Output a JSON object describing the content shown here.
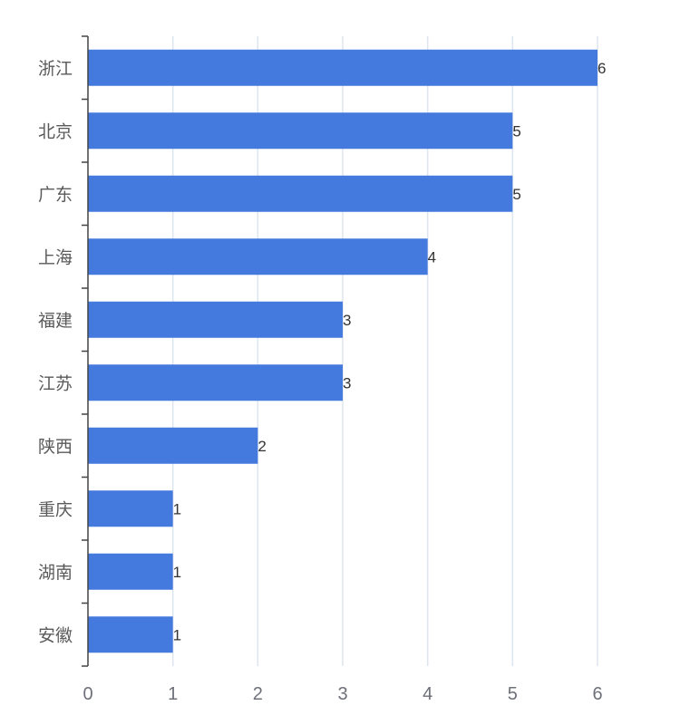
{
  "chart_data": {
    "type": "bar",
    "orientation": "horizontal",
    "categories": [
      "浙江",
      "北京",
      "广东",
      "上海",
      "福建",
      "江苏",
      "陕西",
      "重庆",
      "湖南",
      "安徽"
    ],
    "values": [
      6,
      5,
      5,
      4,
      3,
      3,
      2,
      1,
      1,
      1
    ],
    "title": "",
    "xlabel": "",
    "ylabel": "",
    "xlim": [
      0,
      6
    ],
    "x_ticks": [
      "0",
      "1",
      "2",
      "3",
      "4",
      "5",
      "6"
    ],
    "grid": "vertical",
    "data_labels": "right",
    "colors": {
      "bar": "#4479de",
      "grid": "#dde6ee",
      "axis": "#444444"
    }
  }
}
